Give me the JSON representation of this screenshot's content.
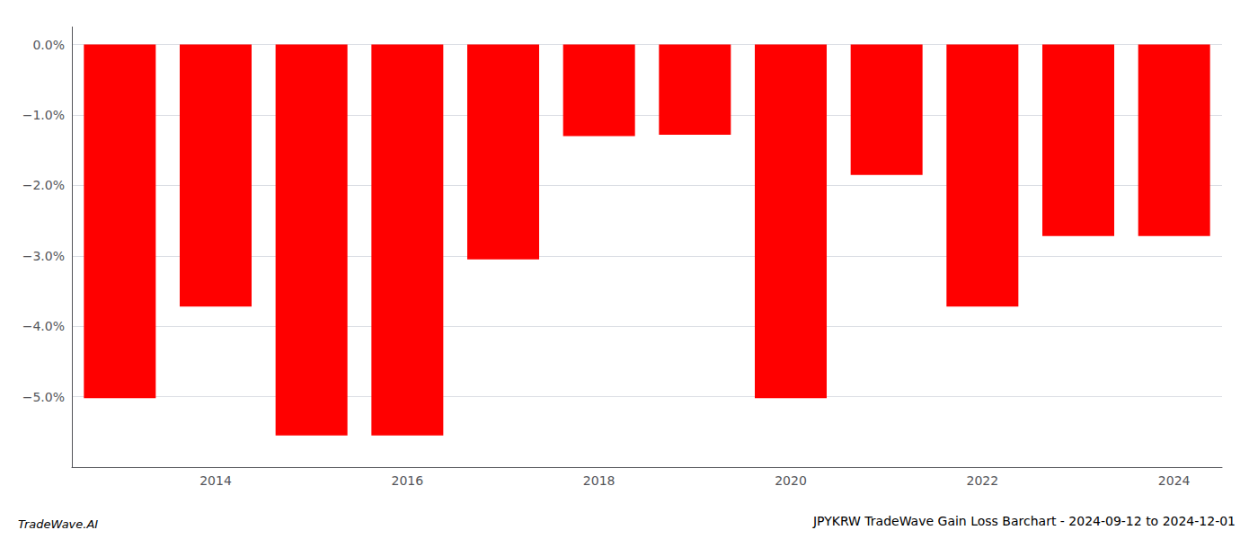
{
  "chart_data": {
    "type": "bar",
    "title": "JPYKRW TradeWave Gain Loss Barchart - 2024-09-12 to 2024-12-01",
    "annotations": [
      "TradeWave.AI"
    ],
    "categories": [
      null,
      "2014",
      null,
      "2016",
      null,
      "2018",
      null,
      "2020",
      null,
      "2022",
      null,
      "2024"
    ],
    "values": [
      -5.02,
      -3.72,
      -5.55,
      -5.55,
      -3.05,
      -1.3,
      -1.28,
      -5.02,
      -1.85,
      -3.72,
      -2.72,
      -2.72
    ],
    "color": "#ff0000",
    "ylim": [
      -6.0,
      0.25
    ],
    "yticks": [
      {
        "value": 0.0,
        "label": "0.0%"
      },
      {
        "value": -1.0,
        "label": "−1.0%"
      },
      {
        "value": -2.0,
        "label": "−2.0%"
      },
      {
        "value": -3.0,
        "label": "−3.0%"
      },
      {
        "value": -4.0,
        "label": "−4.0%"
      },
      {
        "value": -5.0,
        "label": "−5.0%"
      }
    ],
    "grid": true
  }
}
